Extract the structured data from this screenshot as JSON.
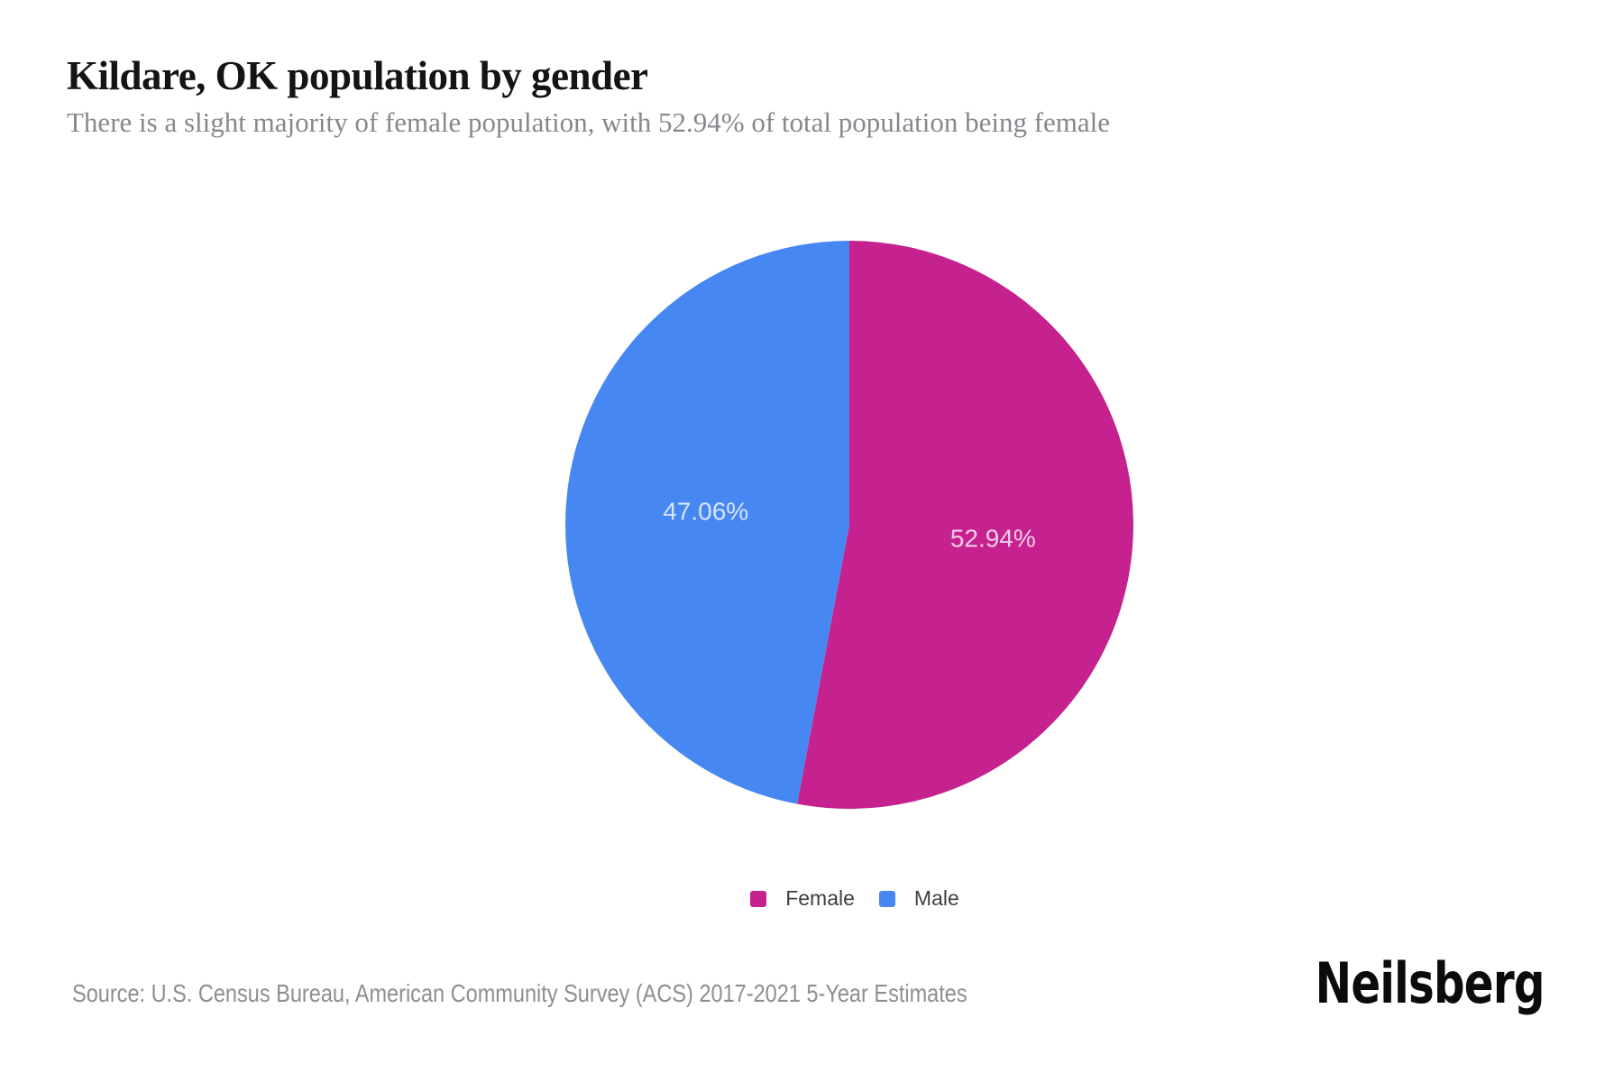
{
  "header": {
    "title": "Kildare, OK population by gender",
    "subtitle": "There is a slight majority of female population, with 52.94% of total population being female"
  },
  "chart_data": {
    "type": "pie",
    "title": "Kildare, OK population by gender",
    "series": [
      {
        "name": "Female",
        "value": 52.94,
        "label": "52.94%",
        "color": "#C5218F"
      },
      {
        "name": "Male",
        "value": 47.06,
        "label": "47.06%",
        "color": "#4787F1"
      }
    ],
    "start_angle": "12-oclock",
    "direction": "clockwise",
    "data_label_color": "rgba(255,255,255,0.78)",
    "legend_position": "bottom-center",
    "background_color": "#ffffff"
  },
  "footer": {
    "source": "Source: U.S. Census Bureau, American Community Survey (ACS) 2017-2021 5-Year Estimates",
    "brand": "Neilsberg"
  }
}
